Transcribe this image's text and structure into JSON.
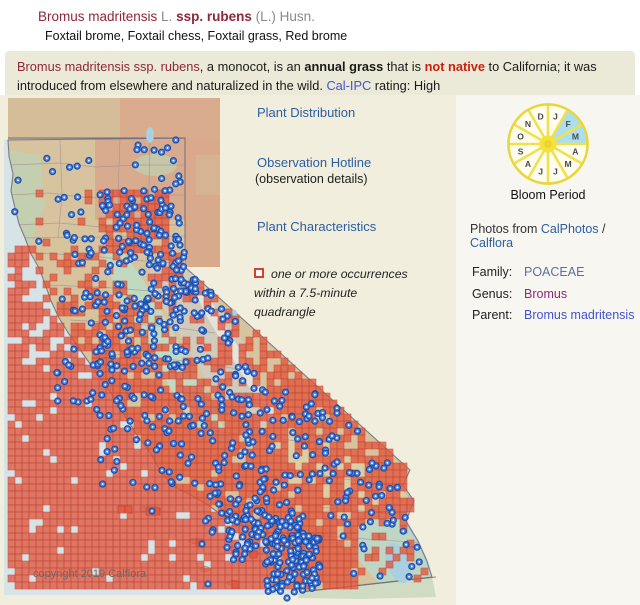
{
  "header": {
    "title_segments": [
      {
        "text": "Bromus madritensis",
        "style": "t-sci"
      },
      {
        "text": "  L.  ",
        "style": "t-auth"
      },
      {
        "text": " ssp. rubens ",
        "style": "t-scib"
      },
      {
        "text": " (L.) Husn.",
        "style": "t-auth"
      }
    ],
    "common_names": "Foxtail brome,  Foxtail chess, Foxtail grass, Red brome"
  },
  "banner": {
    "segments": [
      {
        "text": "Bromus madritensis ssp. rubens",
        "style": "seg-sci"
      },
      {
        "text": ", a monocot, is an ",
        "style": "seg-txt"
      },
      {
        "text": "annual grass",
        "style": "seg-b"
      },
      {
        "text": " that is ",
        "style": "seg-txt"
      },
      {
        "text": "not native",
        "style": "seg-red"
      },
      {
        "text": " to California; it was introduced from elsewhere and naturalized in the wild. ",
        "style": "seg-txt"
      },
      {
        "text": "Cal-IPC",
        "style": "seg-link"
      },
      {
        "text": " rating: High",
        "style": "seg-txt"
      }
    ]
  },
  "links": {
    "plant_distribution": "Plant Distribution",
    "observation_hotline": "Observation Hotline",
    "observation_details": "(observation details)",
    "plant_characteristics": "Plant Characteristics"
  },
  "legend": {
    "line1": "one or more occurrences",
    "line2": "within a 7.5-minute quadrangle"
  },
  "map": {
    "copyright": "copyright 2019 Calflora",
    "colors": {
      "panel_bg": "#f1eede",
      "ocean": "#d6e3e7",
      "land_tan": "#d7c49e",
      "backdrop_tan": "#d4bd98",
      "salmon": "#d9a98c",
      "valley_green": "#c0dac2",
      "coast_green": "#bcd3b4",
      "sierra_gray": "#cfccc0",
      "snow": "#e9e7df",
      "mojave": "#decfa4",
      "se_green": "#bdd8c6",
      "lake_blue": "#a8d0e0",
      "county_line": "#9b8b95",
      "state_border": "#6e6a7e",
      "quad_fill": "#e2573f",
      "quad_stroke": "#c03a26",
      "dot_ring": "#1c4da8",
      "dot_fill": "#5187e0",
      "dot_center": "#ffffff",
      "baja_green": "#ccd8c0"
    }
  },
  "bloom": {
    "label": "Bloom Period",
    "months": [
      "J",
      "F",
      "M",
      "A",
      "M",
      "J",
      "J",
      "A",
      "S",
      "O",
      "N",
      "D"
    ],
    "highlighted": [
      1,
      2
    ],
    "colors": {
      "rim": "#e9d63e",
      "spoke": "#f2e04a",
      "slice": "#fffdf0",
      "highlight": "#abdff0",
      "center": "#f5e13c",
      "center2": "#eed32f",
      "letter": "#4a4a4a"
    }
  },
  "photos": {
    "prefix": "Photos from ",
    "link1": "CalPhotos",
    "sep": " / ",
    "link2": "Calflora"
  },
  "taxonomy": {
    "rows": [
      {
        "label": "Family:",
        "value": "POACEAE",
        "color": "#5d6f9e"
      },
      {
        "label": "Genus:",
        "value": "Bromus",
        "color": "#8e2a77"
      },
      {
        "label": "Parent:",
        "value": "Bromus madritensis",
        "color": "#4253cf"
      }
    ]
  }
}
